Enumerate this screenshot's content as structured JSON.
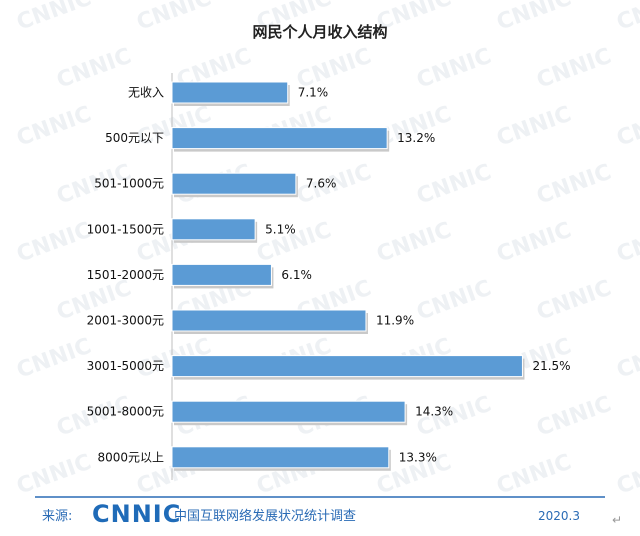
{
  "chart_data": {
    "type": "bar",
    "orientation": "horizontal",
    "title": "网民个人月收入结构",
    "categories": [
      "无收入",
      "500元以下",
      "501-1000元",
      "1001-1500元",
      "1501-2000元",
      "2001-3000元",
      "3001-5000元",
      "5001-8000元",
      "8000元以上"
    ],
    "values": [
      7.1,
      13.2,
      7.6,
      5.1,
      6.1,
      11.9,
      21.5,
      14.3,
      13.3
    ],
    "value_labels": [
      "7.1%",
      "13.2%",
      "7.6%",
      "5.1%",
      "6.1%",
      "11.9%",
      "21.5%",
      "14.3%",
      "13.3%"
    ],
    "unit": "%",
    "bar_color": "#5b9bd5",
    "grid": false,
    "legend": "none"
  },
  "footer": {
    "source_label": "来源:",
    "logo_text": "CNNIC",
    "org_name": "中国互联网络发展状况统计调查",
    "date": "2020.3",
    "accent_color": "#2a6bb5"
  },
  "watermark": "CNNIC"
}
